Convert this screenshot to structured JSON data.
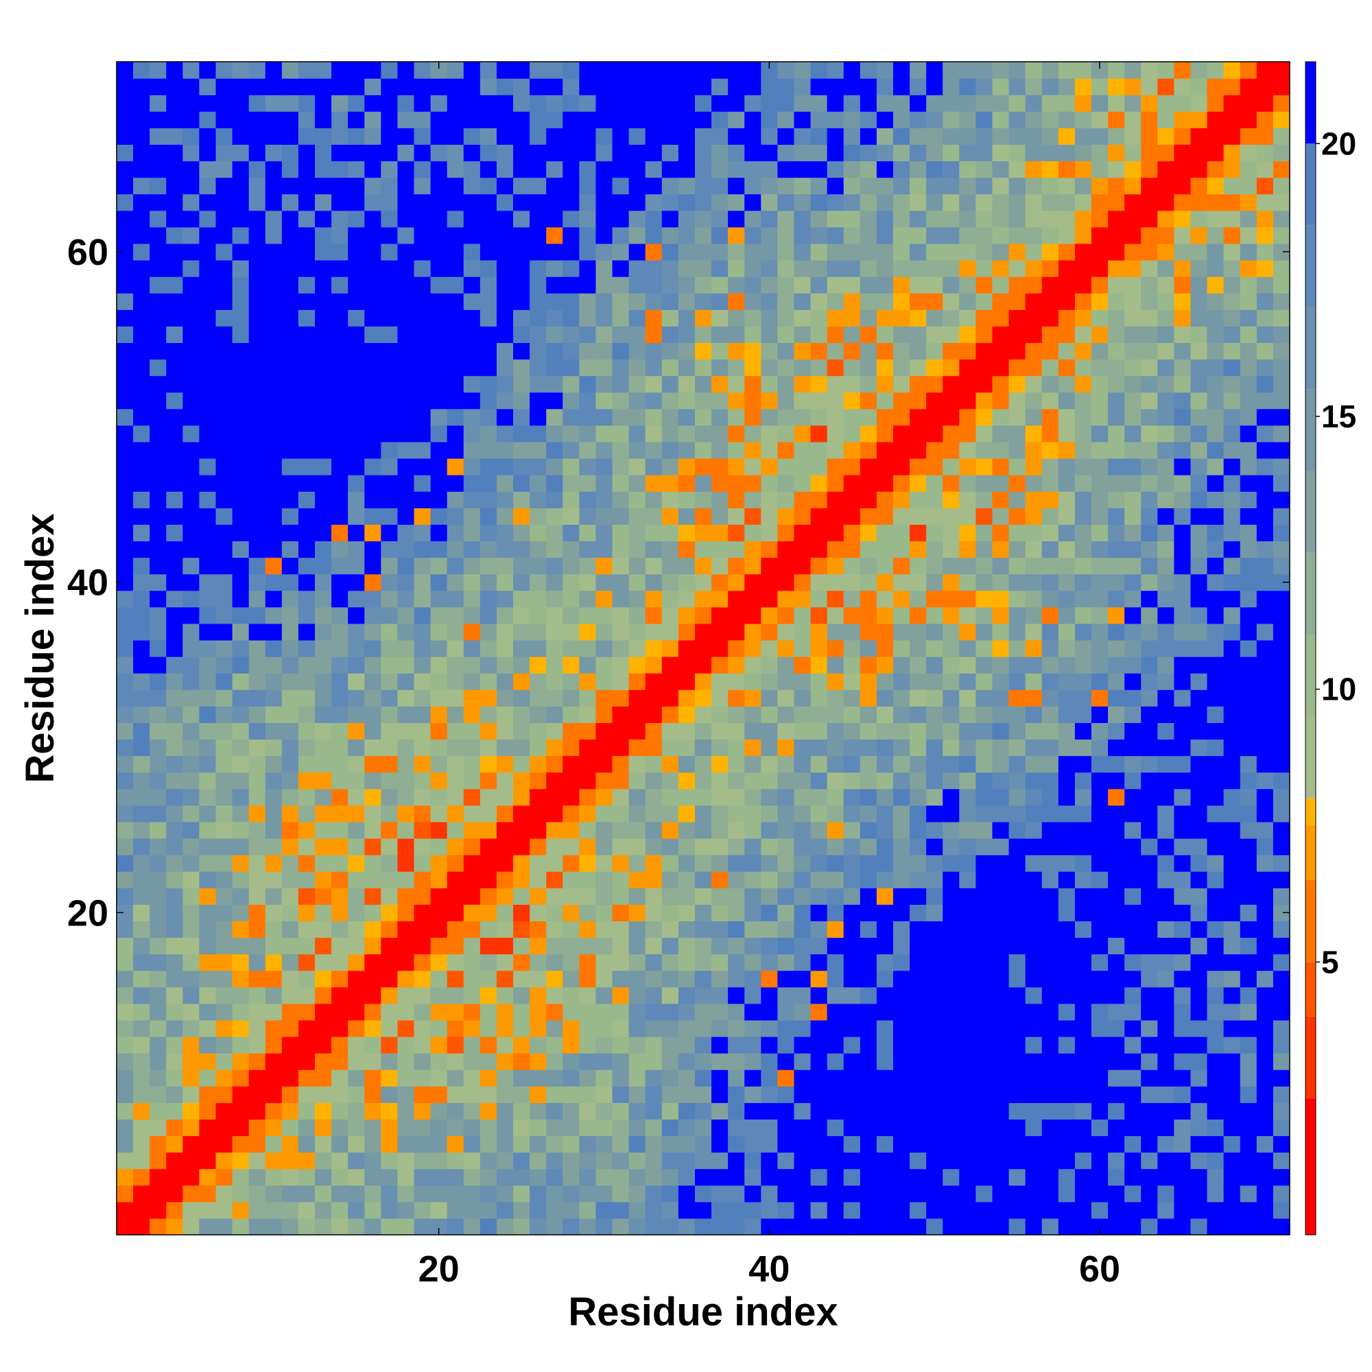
{
  "chart_data": {
    "type": "heatmap",
    "title": "",
    "xlabel": "Residue index",
    "ylabel": "Residue index",
    "n_residues": 71,
    "xlim": [
      0.5,
      71.5
    ],
    "ylim": [
      0.5,
      71.5
    ],
    "x_ticks": [
      20,
      40,
      60
    ],
    "y_ticks": [
      20,
      40,
      60
    ],
    "x_tick_labels": [
      "20",
      "40",
      "60"
    ],
    "y_tick_labels": [
      "20",
      "40",
      "60"
    ],
    "colorbar": {
      "range": [
        0,
        21.5
      ],
      "ticks": [
        5,
        10,
        15,
        20
      ],
      "tick_labels": [
        "5",
        "10",
        "15",
        "20"
      ],
      "levels": [
        {
          "max": 2.5,
          "color": "#ff0000"
        },
        {
          "max": 4.0,
          "color": "#ff3300"
        },
        {
          "max": 5.0,
          "color": "#ff5500"
        },
        {
          "max": 6.5,
          "color": "#ff7700"
        },
        {
          "max": 7.5,
          "color": "#ff9900"
        },
        {
          "max": 8.0,
          "color": "#ffb300"
        },
        {
          "max": 9.5,
          "color": "#a4bc8a"
        },
        {
          "max": 11.0,
          "color": "#99b88c"
        },
        {
          "max": 12.5,
          "color": "#8fae94"
        },
        {
          "max": 14.0,
          "color": "#82a19c"
        },
        {
          "max": 15.5,
          "color": "#7598a6"
        },
        {
          "max": 17.0,
          "color": "#6990b0"
        },
        {
          "max": 18.5,
          "color": "#5e88b8"
        },
        {
          "max": 20.0,
          "color": "#5280bd"
        },
        {
          "max": 99,
          "color": "#0000ff"
        }
      ]
    },
    "description_values": "Symmetric residue-residue distance map (0-21.5). Diagonal band of ~0-2.5 (red), flanking 4-8 (orange), background 9-20 (green/blue), far contacts >20 (blue).",
    "contact_features": [
      {
        "i": 9,
        "j": 16,
        "d": 6
      },
      {
        "i": 10,
        "j": 41,
        "d": 6
      },
      {
        "i": 14,
        "j": 43,
        "d": 6
      },
      {
        "i": 16,
        "j": 43,
        "d": 7
      },
      {
        "i": 16,
        "j": 40,
        "d": 6
      },
      {
        "i": 19,
        "j": 44,
        "d": 7
      },
      {
        "i": 22,
        "j": 37,
        "d": 6
      },
      {
        "i": 27,
        "j": 61,
        "d": 6
      },
      {
        "i": 29,
        "j": 34,
        "d": 7
      },
      {
        "i": 33,
        "j": 56,
        "d": 6
      },
      {
        "i": 36,
        "j": 56,
        "d": 7
      },
      {
        "i": 38,
        "j": 49,
        "d": 6
      },
      {
        "i": 41,
        "j": 30,
        "d": 7
      },
      {
        "i": 44,
        "j": 25,
        "d": 7
      },
      {
        "i": 47,
        "j": 21,
        "d": 7
      },
      {
        "i": 49,
        "j": 57,
        "d": 6
      },
      {
        "i": 51,
        "j": 49,
        "d": 6
      },
      {
        "i": 55,
        "j": 33,
        "d": 6
      },
      {
        "i": 57,
        "j": 38,
        "d": 6
      },
      {
        "i": 60,
        "j": 33,
        "d": 6
      },
      {
        "i": 61,
        "j": 38,
        "d": 7
      },
      {
        "i": 61,
        "j": 27,
        "d": 6
      },
      {
        "i": 63,
        "j": 67,
        "d": 6
      },
      {
        "i": 61,
        "j": 66,
        "d": 7
      },
      {
        "i": 64,
        "j": 60,
        "d": 7
      }
    ]
  }
}
